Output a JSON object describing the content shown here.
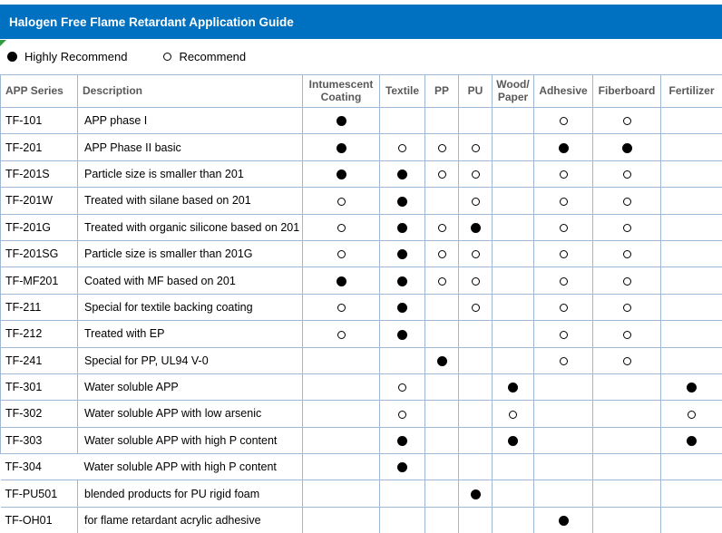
{
  "title_bar": {
    "title": "Halogen Free Flame Retardant Application Guide"
  },
  "colors": {
    "title_bar_bg": "#0070C0",
    "title_text": "#FFFFFF",
    "header_text": "#595959",
    "table_border": "#9DB9D5",
    "corner_flag_green": "#2F9E41",
    "mark_color": "#000000"
  },
  "legend": {
    "items": [
      {
        "symbol": "filled-circle",
        "label": "Highly Recommend"
      },
      {
        "symbol": "open-circle",
        "label": "Recommend"
      }
    ]
  },
  "table": {
    "columns": [
      {
        "key": "app-series",
        "label": "APP Series",
        "align": "left"
      },
      {
        "key": "description",
        "label": "Description",
        "align": "left"
      },
      {
        "key": "intumescent-coating",
        "label": "Intumescent Coating",
        "align": "center"
      },
      {
        "key": "textile",
        "label": "Textile",
        "align": "center"
      },
      {
        "key": "pp",
        "label": "PP",
        "align": "center"
      },
      {
        "key": "pu",
        "label": "PU",
        "align": "center"
      },
      {
        "key": "wood-paper",
        "label": "Wood/Paper",
        "align": "center"
      },
      {
        "key": "adhesive",
        "label": "Adhesive",
        "align": "center"
      },
      {
        "key": "fiberboard",
        "label": "Fiberboard",
        "align": "center"
      },
      {
        "key": "fertilizer",
        "label": "Fertilizer",
        "align": "center"
      }
    ],
    "mark_legend": {
      "filled": "Highly Recommend",
      "open": "Recommend"
    },
    "rows": [
      {
        "series": "TF-101",
        "description": "APP phase I",
        "marks": [
          "filled",
          "",
          "",
          "",
          "",
          "open",
          "open",
          ""
        ]
      },
      {
        "series": "TF-201",
        "description": "APP Phase II basic",
        "marks": [
          "filled",
          "open",
          "open",
          "open",
          "",
          "filled",
          "filled",
          ""
        ]
      },
      {
        "series": "TF-201S",
        "description": "Particle size is smaller than 201",
        "marks": [
          "filled",
          "filled",
          "open",
          "open",
          "",
          "open",
          "open",
          ""
        ]
      },
      {
        "series": "TF-201W",
        "description": "Treated with silane based on 201",
        "marks": [
          "open",
          "filled",
          "",
          "open",
          "",
          "open",
          "open",
          ""
        ]
      },
      {
        "series": "TF-201G",
        "description": "Treated with organic silicone based on 201",
        "marks": [
          "open",
          "filled",
          "open",
          "filled",
          "",
          "open",
          "open",
          ""
        ]
      },
      {
        "series": "TF-201SG",
        "description": "Particle size is smaller than 201G",
        "marks": [
          "open",
          "filled",
          "open",
          "open",
          "",
          "open",
          "open",
          ""
        ]
      },
      {
        "series": "TF-MF201",
        "description": "Coated with MF based on 201",
        "marks": [
          "filled",
          "filled",
          "open",
          "open",
          "",
          "open",
          "open",
          ""
        ]
      },
      {
        "series": "TF-211",
        "description": "Special for textile backing coating",
        "marks": [
          "open",
          "filled",
          "",
          "open",
          "",
          "open",
          "open",
          ""
        ]
      },
      {
        "series": "TF-212",
        "description": "Treated with EP",
        "marks": [
          "open",
          "filled",
          "",
          "",
          "",
          "open",
          "open",
          ""
        ]
      },
      {
        "series": "TF-241",
        "description": "Special for PP, UL94 V-0",
        "marks": [
          "",
          "",
          "filled",
          "",
          "",
          "open",
          "open",
          ""
        ]
      },
      {
        "series": "TF-301",
        "description": "Water soluble APP",
        "marks": [
          "",
          "open",
          "",
          "",
          "filled",
          "",
          "",
          "filled"
        ]
      },
      {
        "series": "TF-302",
        "description": "Water soluble APP with low arsenic",
        "marks": [
          "",
          "open",
          "",
          "",
          "open",
          "",
          "",
          "open"
        ]
      },
      {
        "series": "TF-303",
        "description": "Water soluble APP with high P content",
        "marks": [
          "",
          "filled",
          "",
          "",
          "filled",
          "",
          "",
          "filled"
        ]
      },
      {
        "series": "TF-304",
        "description": "Water soluble APP with high P content",
        "marks": [
          "",
          "filled",
          "",
          "",
          "",
          "",
          "",
          ""
        ]
      },
      {
        "series": "TF-PU501",
        "description": "blended products for PU rigid foam",
        "marks": [
          "",
          "",
          "",
          "filled",
          "",
          "",
          "",
          ""
        ]
      },
      {
        "series": "TF-OH01",
        "description": "for flame retardant acrylic adhesive",
        "marks": [
          "",
          "",
          "",
          "",
          "",
          "filled",
          "",
          ""
        ]
      }
    ]
  }
}
